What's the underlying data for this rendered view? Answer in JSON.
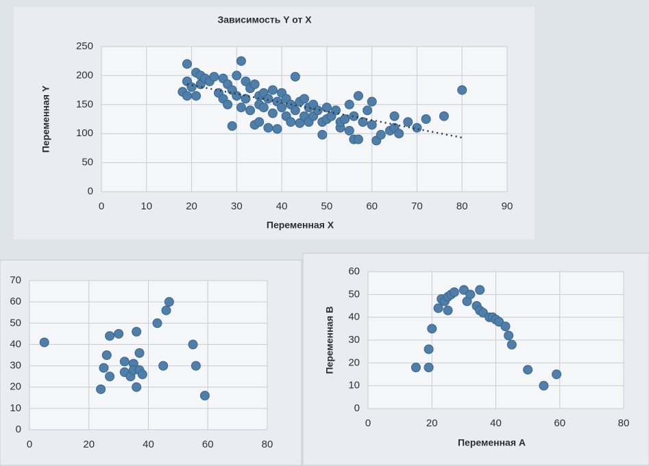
{
  "chart_data": [
    {
      "type": "scatter",
      "title": "Зависимость  Y от X",
      "x_label": "Переменная X",
      "y_label": "Переменная Y",
      "color": "#4f7fa9",
      "grid": true,
      "xlim": [
        0,
        90
      ],
      "xticks": [
        0,
        10,
        20,
        30,
        40,
        50,
        60,
        70,
        80,
        90
      ],
      "ylim": [
        0,
        250
      ],
      "yticks": [
        0,
        50,
        100,
        150,
        200,
        250
      ],
      "x": [
        18,
        19,
        19,
        19,
        20,
        21,
        21,
        22,
        22,
        23,
        24,
        25,
        26,
        27,
        27,
        28,
        28,
        29,
        29,
        30,
        30,
        31,
        31,
        32,
        32,
        33,
        33,
        34,
        34,
        35,
        35,
        35,
        36,
        36,
        37,
        37,
        38,
        38,
        39,
        39,
        40,
        40,
        41,
        41,
        42,
        42,
        43,
        43,
        44,
        44,
        45,
        45,
        46,
        46,
        47,
        47,
        48,
        49,
        49,
        50,
        50,
        51,
        52,
        53,
        53,
        54,
        55,
        55,
        56,
        56,
        57,
        57,
        58,
        59,
        60,
        60,
        61,
        62,
        64,
        65,
        65,
        66,
        68,
        70,
        72,
        76,
        80
      ],
      "y": [
        172,
        165,
        220,
        190,
        180,
        165,
        205,
        200,
        185,
        195,
        190,
        198,
        170,
        195,
        160,
        150,
        185,
        113,
        175,
        200,
        165,
        225,
        145,
        190,
        160,
        178,
        140,
        115,
        185,
        120,
        165,
        150,
        170,
        145,
        110,
        160,
        135,
        175,
        155,
        108,
        145,
        170,
        130,
        160,
        150,
        120,
        140,
        198,
        155,
        118,
        130,
        160,
        145,
        120,
        150,
        130,
        140,
        120,
        98,
        145,
        125,
        130,
        140,
        110,
        120,
        125,
        150,
        105,
        130,
        90,
        165,
        90,
        120,
        140,
        155,
        115,
        88,
        98,
        105,
        130,
        110,
        100,
        120,
        110,
        125,
        130,
        175
      ],
      "trendline": {
        "x": [
          19,
          80
        ],
        "y": [
          185,
          93
        ]
      }
    },
    {
      "type": "scatter",
      "color": "#4f7fa9",
      "grid": true,
      "xlim": [
        0,
        80
      ],
      "xticks": [
        0,
        20,
        40,
        60,
        80
      ],
      "ylim": [
        0,
        70
      ],
      "yticks": [
        0,
        10,
        20,
        30,
        40,
        50,
        60,
        70
      ],
      "x": [
        5,
        24,
        25,
        26,
        27,
        27,
        30,
        32,
        32,
        34,
        35,
        35,
        36,
        36,
        37,
        37,
        38,
        43,
        45,
        46,
        47,
        55,
        56,
        59
      ],
      "y": [
        41,
        19,
        29,
        35,
        25,
        44,
        45,
        32,
        27,
        25,
        31,
        28,
        20,
        46,
        36,
        28,
        26,
        50,
        30,
        56,
        60,
        40,
        30,
        16
      ]
    },
    {
      "type": "scatter",
      "x_label": "Переменная A",
      "y_label": "Переменная B",
      "color": "#4f7fa9",
      "grid": true,
      "xlim": [
        0,
        80
      ],
      "xticks": [
        0,
        20,
        40,
        60,
        80
      ],
      "ylim": [
        0,
        60
      ],
      "yticks": [
        0,
        10,
        20,
        30,
        40,
        50,
        60
      ],
      "x": [
        15,
        19,
        19,
        20,
        22,
        23,
        24,
        25,
        25,
        26,
        27,
        30,
        31,
        32,
        34,
        35,
        35,
        36,
        38,
        39,
        40,
        41,
        43,
        44,
        45,
        50,
        55,
        59
      ],
      "y": [
        18,
        18,
        26,
        35,
        44,
        48,
        47,
        43,
        49,
        50,
        51,
        52,
        47,
        50,
        45,
        52,
        43,
        42,
        40,
        40,
        39,
        38,
        36,
        32,
        28,
        17,
        10,
        15
      ]
    }
  ]
}
